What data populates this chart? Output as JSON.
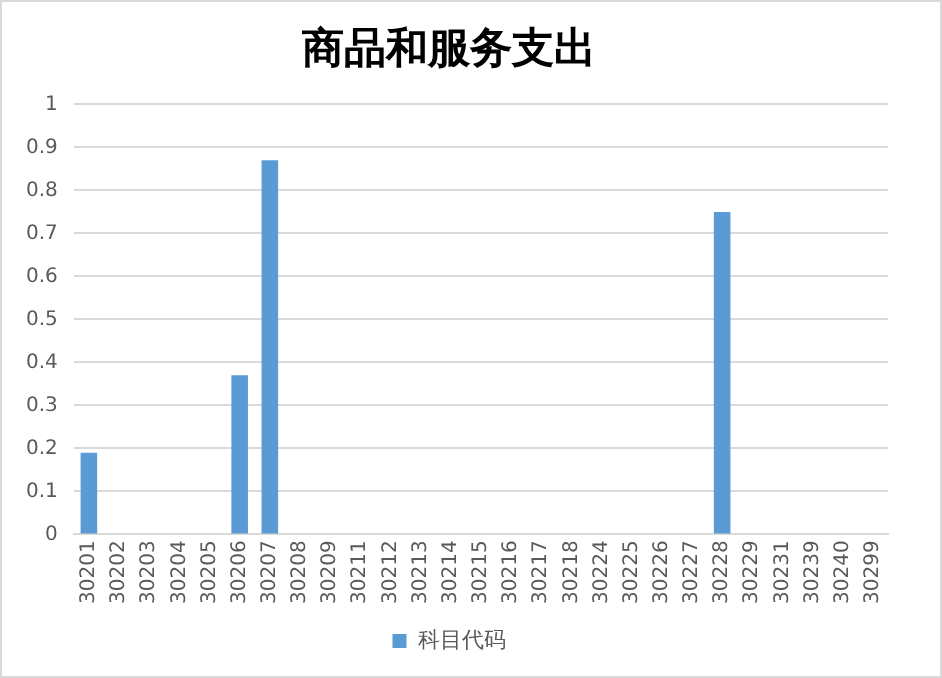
{
  "chart_data": {
    "type": "bar",
    "title": "商品和服务支出",
    "categories": [
      "30201",
      "30202",
      "30203",
      "30204",
      "30205",
      "30206",
      "30207",
      "30208",
      "30209",
      "30211",
      "30212",
      "30213",
      "30214",
      "30215",
      "30216",
      "30217",
      "30218",
      "30224",
      "30225",
      "30226",
      "30227",
      "30228",
      "30229",
      "30231",
      "30239",
      "30240",
      "30299"
    ],
    "series": [
      {
        "name": "科目代码",
        "color": "#5b9bd5",
        "values": [
          0.19,
          0,
          0,
          0,
          0,
          0.37,
          0.87,
          0,
          0,
          0,
          0,
          0,
          0,
          0,
          0,
          0,
          0,
          0,
          0,
          0,
          0,
          0.75,
          0,
          0,
          0,
          0,
          0
        ]
      }
    ],
    "ylim": [
      0,
      1
    ],
    "yticks": [
      0,
      0.1,
      0.2,
      0.3,
      0.4,
      0.5,
      0.6,
      0.7,
      0.8,
      0.9,
      1
    ],
    "grid": "y",
    "legend": "bottom"
  }
}
